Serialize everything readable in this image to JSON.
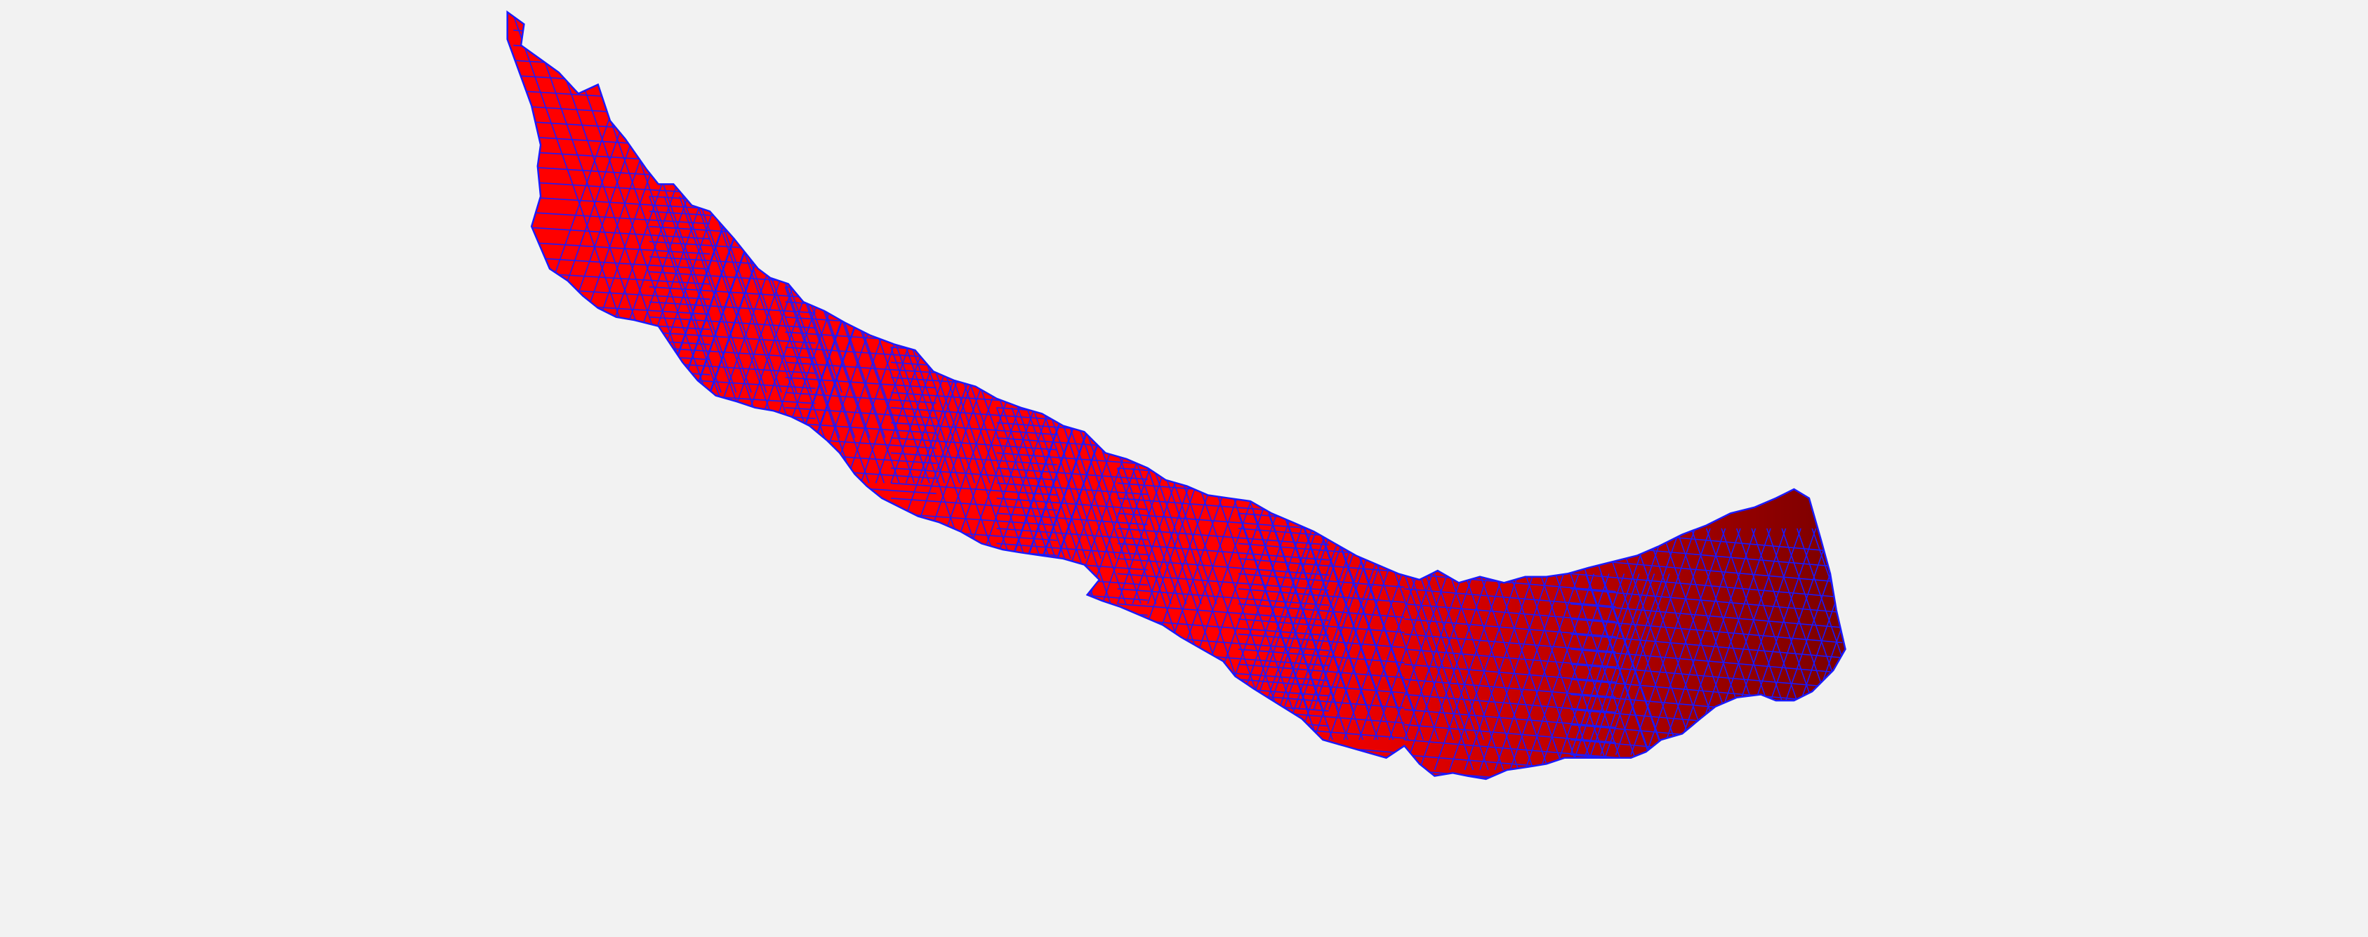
{
  "scene": {
    "background_color": "#f2f2f2",
    "object": "mesh-surface",
    "surface_colors": {
      "bright": "#ff0000",
      "mid": "#e00000",
      "dark": "#7a0000"
    },
    "wireframe_color": "#1a1aff"
  }
}
